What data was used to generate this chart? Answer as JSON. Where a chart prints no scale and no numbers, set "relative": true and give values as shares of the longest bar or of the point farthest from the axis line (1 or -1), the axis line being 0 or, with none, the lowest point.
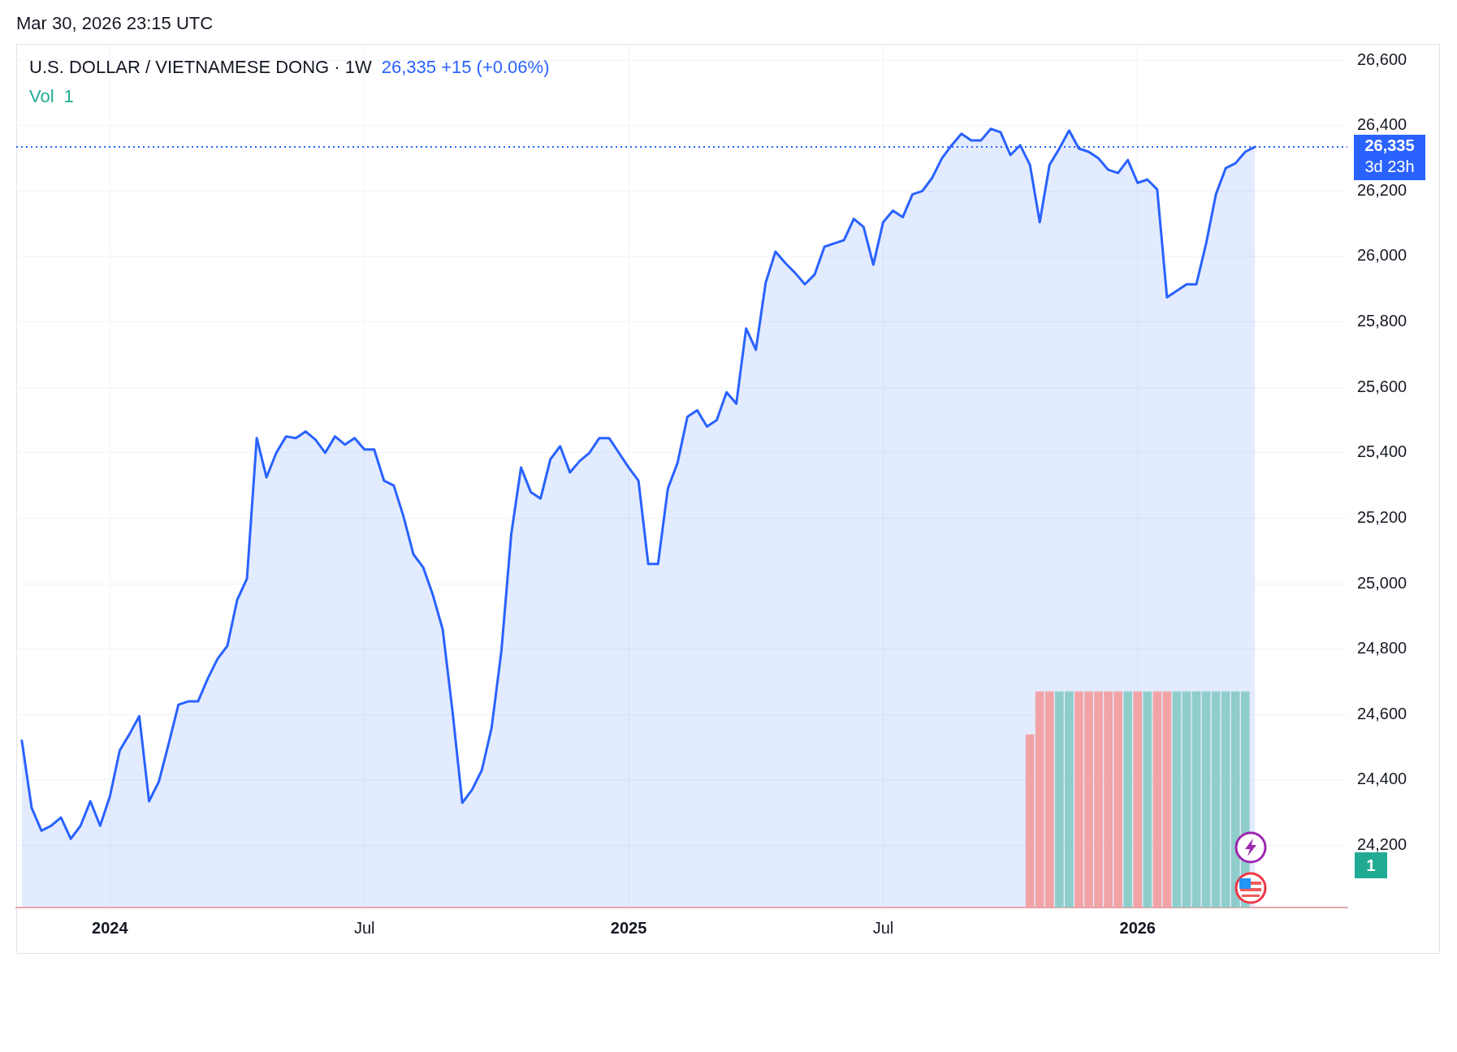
{
  "chart_data": [
    {
      "type": "area",
      "title": "U.S. DOLLAR / VIETNAMESE DONG · 1W",
      "subtitle": "26,335  +15 (+0.06%)",
      "annotations": [
        "Mar 30, 2026 23:15 UTC",
        "3d 23h"
      ],
      "xlim": [
        "2023-10-26",
        "2026-06-04"
      ],
      "xticks": [
        {
          "value": "2024-01-01",
          "label": "2024"
        },
        {
          "value": "2024-07-01",
          "label": "Jul"
        },
        {
          "value": "2025-01-06",
          "label": "2025"
        },
        {
          "value": "2025-07-07",
          "label": "Jul"
        },
        {
          "value": "2026-01-05",
          "label": "2026"
        }
      ],
      "ylim": [
        24010,
        26650
      ],
      "yticks": [
        {
          "value": 24200,
          "label": "24,200"
        },
        {
          "value": 24400,
          "label": "24,400"
        },
        {
          "value": 24600,
          "label": "24,600"
        },
        {
          "value": 24800,
          "label": "24,800"
        },
        {
          "value": 25000,
          "label": "25,000"
        },
        {
          "value": 25200,
          "label": "25,200"
        },
        {
          "value": 25400,
          "label": "25,400"
        },
        {
          "value": 25600,
          "label": "25,600"
        },
        {
          "value": 25800,
          "label": "25,800"
        },
        {
          "value": 26000,
          "label": "26,000"
        },
        {
          "value": 26200,
          "label": "26,200"
        },
        {
          "value": 26400,
          "label": "26,400"
        },
        {
          "value": 26600,
          "label": "26,600"
        }
      ],
      "grid": true,
      "ref_lines": [
        {
          "axis": "y",
          "value": 26335,
          "label": "26,335",
          "color": "#2962ff",
          "line_style": "dotted"
        }
      ],
      "color": "#2962ff",
      "x": [
        "2023-10-30",
        "2023-11-06",
        "2023-11-13",
        "2023-11-20",
        "2023-11-27",
        "2023-12-04",
        "2023-12-11",
        "2023-12-18",
        "2023-12-25",
        "2024-01-01",
        "2024-01-08",
        "2024-01-15",
        "2024-01-22",
        "2024-01-29",
        "2024-02-05",
        "2024-02-12",
        "2024-02-19",
        "2024-02-26",
        "2024-03-04",
        "2024-03-11",
        "2024-03-18",
        "2024-03-25",
        "2024-04-01",
        "2024-04-08",
        "2024-04-15",
        "2024-04-22",
        "2024-04-29",
        "2024-05-06",
        "2024-05-13",
        "2024-05-20",
        "2024-05-27",
        "2024-06-03",
        "2024-06-10",
        "2024-06-17",
        "2024-06-24",
        "2024-07-01",
        "2024-07-08",
        "2024-07-15",
        "2024-07-22",
        "2024-07-29",
        "2024-08-05",
        "2024-08-12",
        "2024-08-19",
        "2024-08-26",
        "2024-09-02",
        "2024-09-09",
        "2024-09-16",
        "2024-09-23",
        "2024-09-30",
        "2024-10-07",
        "2024-10-14",
        "2024-10-21",
        "2024-10-28",
        "2024-11-04",
        "2024-11-11",
        "2024-11-18",
        "2024-11-25",
        "2024-12-02",
        "2024-12-09",
        "2024-12-16",
        "2024-12-23",
        "2024-12-30",
        "2025-01-06",
        "2025-01-13",
        "2025-01-20",
        "2025-01-27",
        "2025-02-03",
        "2025-02-10",
        "2025-02-17",
        "2025-02-24",
        "2025-03-03",
        "2025-03-10",
        "2025-03-17",
        "2025-03-24",
        "2025-03-31",
        "2025-04-07",
        "2025-04-14",
        "2025-04-21",
        "2025-04-28",
        "2025-05-05",
        "2025-05-12",
        "2025-05-19",
        "2025-05-26",
        "2025-06-02",
        "2025-06-09",
        "2025-06-16",
        "2025-06-23",
        "2025-06-30",
        "2025-07-07",
        "2025-07-14",
        "2025-07-21",
        "2025-07-28",
        "2025-08-04",
        "2025-08-11",
        "2025-08-18",
        "2025-08-25",
        "2025-09-01",
        "2025-09-08",
        "2025-09-15",
        "2025-09-22",
        "2025-09-29",
        "2025-10-06",
        "2025-10-13",
        "2025-10-20",
        "2025-10-27",
        "2025-11-03",
        "2025-11-10",
        "2025-11-17",
        "2025-11-24",
        "2025-12-01",
        "2025-12-08",
        "2025-12-15",
        "2025-12-22",
        "2025-12-29",
        "2026-01-05",
        "2026-01-12",
        "2026-01-19",
        "2026-01-26",
        "2026-02-02",
        "2026-02-09",
        "2026-02-16",
        "2026-02-23",
        "2026-03-02",
        "2026-03-09",
        "2026-03-16",
        "2026-03-23",
        "2026-03-30"
      ],
      "values": [
        24520,
        24315,
        24245,
        24260,
        24285,
        24220,
        24260,
        24335,
        24260,
        24350,
        24490,
        24540,
        24595,
        24335,
        24395,
        24510,
        24630,
        24640,
        24640,
        24710,
        24770,
        24810,
        24950,
        25015,
        25445,
        25325,
        25400,
        25450,
        25445,
        25465,
        25440,
        25400,
        25450,
        25425,
        25445,
        25410,
        25410,
        25315,
        25300,
        25205,
        25090,
        25050,
        24965,
        24860,
        24610,
        24330,
        24370,
        24430,
        24560,
        24795,
        25150,
        25355,
        25280,
        25260,
        25380,
        25420,
        25340,
        25375,
        25400,
        25445,
        25445,
        25400,
        25355,
        25315,
        25060,
        25060,
        25290,
        25370,
        25510,
        25530,
        25480,
        25500,
        25585,
        25550,
        25780,
        25715,
        25920,
        26015,
        25980,
        25950,
        25915,
        25945,
        26030,
        26040,
        26050,
        26115,
        26090,
        25975,
        26105,
        26140,
        26120,
        26190,
        26200,
        26240,
        26300,
        26340,
        26375,
        26355,
        26355,
        26390,
        26380,
        26310,
        26340,
        26280,
        26105,
        26280,
        26330,
        26385,
        26330,
        26320,
        26300,
        26265,
        26255,
        26295,
        26225,
        26235,
        26205,
        25875,
        25895,
        25915,
        25915,
        26040,
        26190,
        26270,
        26285,
        26320,
        26335
      ]
    },
    {
      "type": "bar",
      "relative": true,
      "annotations": [
        "1"
      ],
      "xlim": [
        "2023-10-26",
        "2026-06-04"
      ],
      "series": [
        {
          "name": "Vol",
          "color": "#22ab94",
          "x": [
            "2025-10-20",
            "2025-10-27",
            "2025-11-03",
            "2025-11-10",
            "2025-11-17",
            "2025-11-24",
            "2025-12-01",
            "2025-12-08",
            "2025-12-15",
            "2025-12-22",
            "2025-12-29",
            "2026-01-05",
            "2026-01-12",
            "2026-01-19",
            "2026-01-26",
            "2026-02-02",
            "2026-02-09",
            "2026-02-16",
            "2026-02-23",
            "2026-03-02",
            "2026-03-09",
            "2026-03-16",
            "2026-03-23"
          ],
          "values": [
            0.8,
            1,
            1,
            1,
            1,
            1,
            1,
            1,
            1,
            1,
            1,
            1,
            1,
            1,
            1,
            1,
            1,
            1,
            1,
            1,
            1,
            1,
            1
          ],
          "colors": [
            "#f2a3a6",
            "#f2a3a6",
            "#f2a3a6",
            "#8fcdcb",
            "#8fcdcb",
            "#f2a3a6",
            "#f2a3a6",
            "#f2a3a6",
            "#f2a3a6",
            "#f2a3a6",
            "#8fcdcb",
            "#f2a3a6",
            "#8fcdcb",
            "#f2a3a6",
            "#f2a3a6",
            "#8fcdcb",
            "#8fcdcb",
            "#8fcdcb",
            "#8fcdcb",
            "#8fcdcb",
            "#8fcdcb",
            "#8fcdcb",
            "#8fcdcb"
          ]
        }
      ]
    }
  ]
}
